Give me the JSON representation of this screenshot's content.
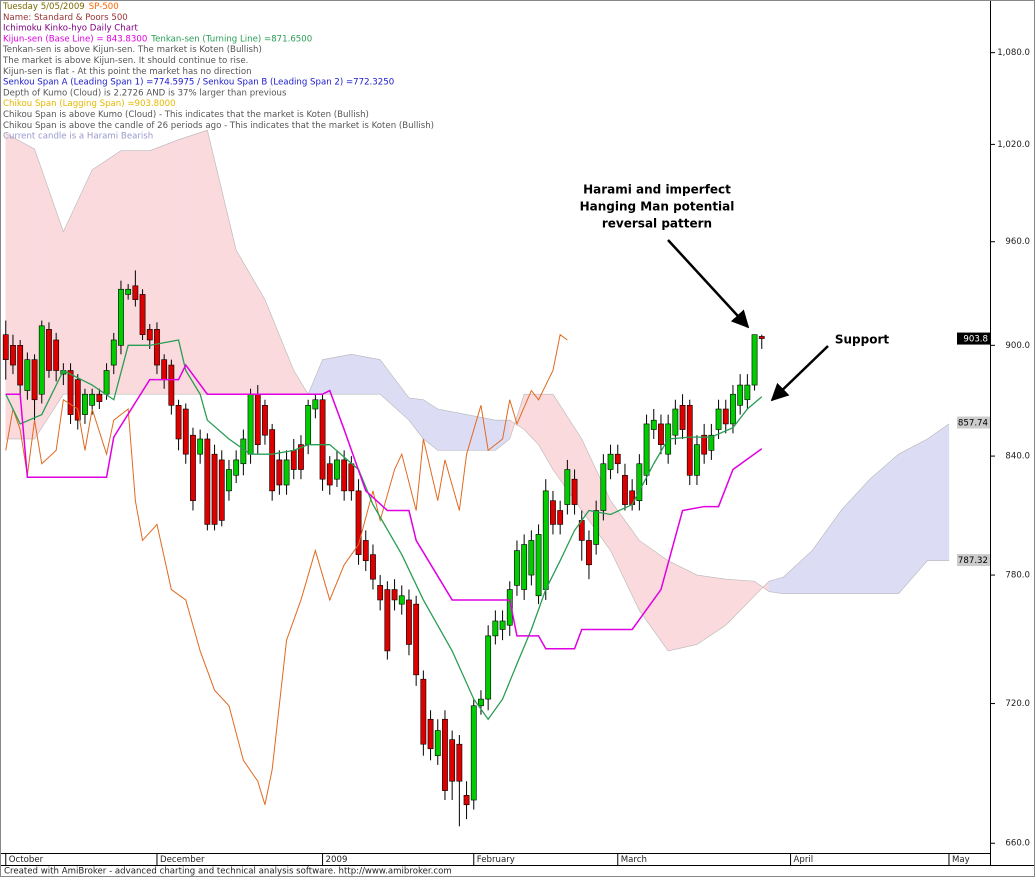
{
  "chart_data": {
    "type": "candlestick",
    "header": [
      [
        {
          "text": "Tuesday 5/05/2009",
          "color": "#7a6a00"
        },
        {
          "text": "SP-500",
          "color": "#ff6600"
        }
      ],
      [
        {
          "text": "Name: Standard & Poors 500",
          "color": "#993333"
        }
      ],
      [
        {
          "text": "Ichimoku Kinko-hyo Daily Chart",
          "color": "#800080"
        }
      ],
      [
        {
          "text": "Kijun-sen (Base Line) = 843.8300",
          "color": "#e000e0"
        },
        {
          "text": "Tenkan-sen (Turning Line) =871.6500",
          "color": "#2a9d55"
        }
      ],
      [
        {
          "text": "Tenkan-sen is above Kijun-sen. The market is Koten (Bullish)",
          "color": "#555555"
        }
      ],
      [
        {
          "text": "The market is above Kijun-sen. It should continue to rise.",
          "color": "#555555"
        }
      ],
      [
        {
          "text": "Kijun-sen is flat - At this point the market has no direction",
          "color": "#555555"
        }
      ],
      [
        {
          "text": "Senkou Span A (Leading Span 1) =774.5975 / Senkou Span B (Leading Span 2) =772.3250",
          "color": "#1a1acc"
        }
      ],
      [
        {
          "text": "Depth of Kumo (Cloud) is 2.2726 AND is 37% larger than previous",
          "color": "#555555"
        }
      ],
      [
        {
          "text": "Chikou Span (Lagging Span) =903.8000",
          "color": "#e6b800"
        }
      ],
      [
        {
          "text": "Chikou Span is above Kumo (Cloud) - This indicates that the market is Koten (Bullish)",
          "color": "#555555"
        }
      ],
      [
        {
          "text": "Chikou Span is above the candle of 26 periods ago - This indicates that the market is Koten (Bullish)",
          "color": "#555555"
        }
      ],
      [
        {
          "text": "Current candle is a Harami Bearish",
          "color": "#9999cc"
        }
      ]
    ],
    "xlim": [
      -0.8,
      136.7
    ],
    "xticks": [
      {
        "value": 0,
        "label": "October"
      },
      {
        "value": 21,
        "label": "December"
      },
      {
        "value": 44,
        "label": "2009"
      },
      {
        "value": 65,
        "label": "February"
      },
      {
        "value": 85,
        "label": "March"
      },
      {
        "value": 109,
        "label": "April"
      },
      {
        "value": 131,
        "label": "May"
      }
    ],
    "ylim": [
      656,
      1116
    ],
    "log_y": true,
    "yticks": [
      {
        "value": 660,
        "label": "660.0"
      },
      {
        "value": 720,
        "label": "720.0"
      },
      {
        "value": 780,
        "label": "780.0"
      },
      {
        "value": 840,
        "label": "840.0"
      },
      {
        "value": 900,
        "label": "900.0"
      },
      {
        "value": 960,
        "label": "960.0"
      },
      {
        "value": 1020,
        "label": "1,020.0"
      },
      {
        "value": 1080,
        "label": "1,080.0"
      }
    ],
    "candles": {
      "up_color": "#00cc00",
      "down_color": "#dd0000",
      "open": [
        906,
        900,
        900,
        875,
        892,
        873,
        909,
        903,
        884,
        886,
        881,
        862,
        867,
        873,
        873,
        889,
        900,
        929,
        934,
        929,
        909,
        909,
        892,
        889,
        867,
        865,
        851,
        841,
        849,
        841,
        838,
        822,
        830,
        836,
        841,
        873,
        867,
        854,
        838,
        825,
        843,
        846,
        846,
        865,
        870,
        836,
        828,
        838,
        836,
        822,
        797,
        790,
        775,
        773,
        773,
        766,
        768,
        766,
        731,
        713,
        697,
        713,
        704,
        702,
        680,
        678,
        719,
        722,
        751,
        754,
        756,
        775,
        773,
        780,
        770,
        773,
        817,
        812,
        815,
        828,
        807,
        797,
        795,
        812,
        833,
        841,
        830,
        822,
        817,
        830,
        854,
        857,
        841,
        851,
        867,
        867,
        830,
        851,
        843,
        854,
        865,
        857,
        867,
        870,
        878,
        905
      ],
      "high": [
        914,
        906,
        903,
        896,
        895,
        914,
        913,
        907,
        890,
        890,
        884,
        876,
        876,
        876,
        890,
        907,
        937,
        935,
        943,
        932,
        912,
        913,
        895,
        892,
        870,
        868,
        855,
        854,
        852,
        846,
        843,
        838,
        843,
        854,
        876,
        878,
        870,
        857,
        843,
        843,
        849,
        851,
        870,
        873,
        873,
        840,
        843,
        843,
        840,
        828,
        802,
        795,
        780,
        777,
        778,
        775,
        773,
        770,
        735,
        717,
        713,
        717,
        708,
        706,
        686,
        722,
        726,
        756,
        763,
        763,
        777,
        797,
        800,
        802,
        805,
        828,
        822,
        817,
        838,
        833,
        812,
        802,
        817,
        841,
        846,
        846,
        836,
        828,
        841,
        862,
        865,
        862,
        862,
        870,
        873,
        870,
        851,
        857,
        857,
        870,
        870,
        878,
        884,
        884,
        906,
        906
      ],
      "low": [
        881,
        884,
        872,
        870,
        859,
        868,
        882,
        880,
        878,
        857,
        854,
        857,
        862,
        865,
        870,
        884,
        895,
        926,
        922,
        903,
        898,
        884,
        876,
        862,
        843,
        836,
        812,
        836,
        802,
        802,
        804,
        817,
        826,
        830,
        836,
        841,
        846,
        817,
        820,
        820,
        828,
        828,
        841,
        860,
        822,
        820,
        824,
        817,
        817,
        785,
        782,
        773,
        763,
        740,
        763,
        761,
        742,
        728,
        697,
        695,
        693,
        678,
        678,
        667,
        670,
        674,
        715,
        717,
        747,
        749,
        751,
        770,
        768,
        775,
        766,
        768,
        800,
        800,
        810,
        810,
        787,
        778,
        790,
        807,
        828,
        831,
        812,
        812,
        812,
        825,
        849,
        841,
        836,
        846,
        849,
        825,
        825,
        836,
        838,
        849,
        852,
        852,
        862,
        865,
        875,
        898
      ],
      "close": [
        892,
        889,
        878,
        892,
        870,
        911,
        886,
        886,
        886,
        862,
        859,
        873,
        873,
        869,
        886,
        903,
        932,
        932,
        926,
        906,
        903,
        889,
        881,
        867,
        849,
        841,
        817,
        849,
        805,
        805,
        807,
        833,
        838,
        849,
        873,
        846,
        851,
        822,
        825,
        838,
        833,
        833,
        867,
        870,
        828,
        825,
        838,
        822,
        822,
        790,
        787,
        778,
        768,
        744,
        768,
        770,
        747,
        733,
        702,
        700,
        708,
        682,
        686,
        686,
        676,
        719,
        722,
        751,
        758,
        758,
        773,
        792,
        795,
        797,
        800,
        822,
        805,
        805,
        833,
        815,
        797,
        785,
        812,
        836,
        841,
        836,
        815,
        815,
        836,
        857,
        859,
        846,
        857,
        865,
        854,
        830,
        846,
        841,
        851,
        865,
        857,
        873,
        878,
        878,
        906,
        903.8
      ]
    },
    "cloud": {
      "bull_color": "#dcdcf5",
      "bear_color": "#fadadd",
      "edge_color": "#b8b8b8",
      "x": [
        0,
        4,
        8,
        12,
        16,
        20,
        24,
        28,
        32,
        36,
        40,
        42,
        44,
        48,
        52,
        56,
        58,
        60,
        64,
        68,
        70,
        72,
        74,
        76,
        80,
        84,
        88,
        92,
        96,
        100,
        104,
        106,
        108,
        112,
        116,
        120,
        124,
        128,
        131
      ],
      "senkou_a": [
        849,
        849,
        873,
        873,
        873,
        873,
        873,
        873,
        873,
        873,
        873,
        873,
        892,
        895,
        892,
        871,
        870,
        865,
        862,
        859,
        859,
        854,
        846,
        833,
        812,
        792,
        763,
        744,
        747,
        756,
        770,
        777,
        779,
        792,
        812,
        828,
        841,
        849,
        857
      ],
      "senkou_b": [
        1027,
        1017,
        966,
        1004,
        1016,
        1016,
        1023,
        1029,
        955,
        926,
        886,
        873,
        873,
        873,
        873,
        859,
        849,
        843,
        843,
        843,
        849,
        873,
        873,
        873,
        849,
        817,
        797,
        787,
        780,
        778,
        777,
        772,
        771,
        771,
        771,
        771,
        771,
        787,
        787
      ]
    },
    "lines": [
      {
        "color": "#e06a20",
        "width": 1,
        "x": [
          0,
          1,
          2,
          3,
          4,
          5,
          7,
          8,
          10,
          11,
          12,
          14,
          15,
          17,
          18,
          19,
          21,
          23,
          25,
          27,
          29,
          31,
          33,
          35,
          36,
          37,
          39,
          41,
          43,
          45,
          47,
          49,
          51,
          52,
          54,
          55,
          57,
          58,
          60,
          61,
          63,
          64,
          66,
          67,
          69,
          70,
          71,
          73,
          74,
          76,
          77,
          78
        ],
        "values": [
          843,
          865,
          854,
          830,
          859,
          836,
          843,
          870,
          865,
          843,
          865,
          841,
          859,
          865,
          817,
          797,
          805,
          773,
          768,
          744,
          726,
          719,
          695,
          686,
          676,
          691,
          749,
          768,
          792,
          768,
          785,
          795,
          822,
          807,
          833,
          841,
          812,
          849,
          817,
          838,
          812,
          841,
          867,
          843,
          849,
          870,
          857,
          875,
          870,
          886,
          906,
          903
        ]
      },
      {
        "color": "#2a9d55",
        "width": 1.3,
        "x": [
          0,
          2,
          5,
          8,
          12,
          15,
          17,
          20,
          24,
          25,
          27,
          28,
          31,
          34,
          37,
          40,
          42,
          45,
          49,
          51,
          55,
          58,
          62,
          65,
          67,
          69,
          71,
          73,
          75,
          77,
          79,
          81,
          84,
          87,
          90,
          92,
          95,
          98,
          101,
          103,
          105
        ],
        "values": [
          873,
          857,
          862,
          886,
          878,
          870,
          900,
          900,
          903,
          886,
          873,
          859,
          849,
          841,
          841,
          843,
          846,
          846,
          833,
          815,
          790,
          768,
          744,
          722,
          713,
          722,
          738,
          754,
          773,
          787,
          802,
          812,
          810,
          815,
          836,
          849,
          850,
          850,
          855,
          865,
          871.65
        ]
      },
      {
        "color": "#e000e0",
        "width": 1.5,
        "x": [
          0,
          2,
          3,
          14,
          15,
          20,
          24,
          25,
          28,
          44,
          45,
          47,
          50,
          53,
          56,
          57,
          62,
          70,
          71,
          74,
          75,
          79,
          80,
          87,
          91,
          94,
          97,
          99,
          101,
          105
        ],
        "values": [
          873,
          873,
          829,
          829,
          850,
          881,
          881,
          889,
          873,
          873,
          875,
          854,
          822,
          812,
          812,
          797,
          768,
          768,
          751,
          751,
          745,
          745,
          754,
          754,
          773,
          812,
          814,
          814,
          833,
          843.83
        ]
      }
    ],
    "price_markers": [
      {
        "value": 903.8,
        "color": "#000000",
        "text_color": "#ffffff"
      },
      {
        "value": 857.74,
        "color": "#cccccc",
        "text_color": "#000000"
      },
      {
        "value": 787.32,
        "color": "#cccccc",
        "text_color": "#000000"
      }
    ],
    "annotations": [
      {
        "lines": [
          "Harami and imperfect",
          "Hanging Man potential",
          "reversal pattern"
        ]
      },
      {
        "lines": [
          "Support"
        ]
      }
    ],
    "footer": "Created with AmiBroker - advanced charting and technical analysis software. http://www.amibroker.com"
  }
}
